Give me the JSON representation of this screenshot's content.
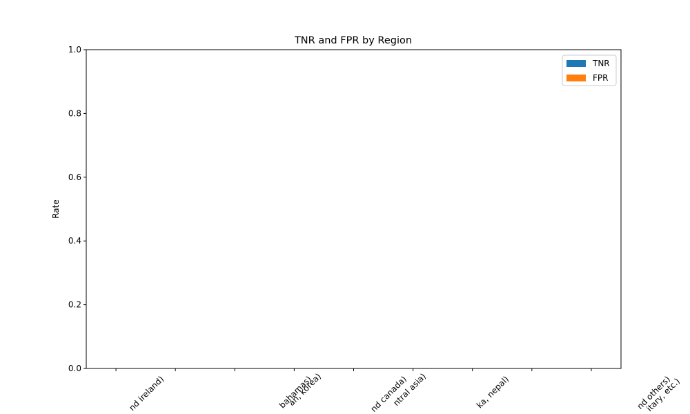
{
  "chart_data": {
    "type": "bar",
    "title": "TNR and FPR by Region",
    "ylabel": "Rate",
    "categories": [
      "nd ireland)",
      null,
      "bahamas)",
      "an, korea)",
      "nd canada)",
      "ntral asia)",
      "ka, nepal)",
      "nd others)",
      "itary, etc.)"
    ],
    "series": [
      {
        "name": "TNR",
        "color": "#1f77b4",
        "values": [
          null,
          null,
          null,
          null,
          null,
          null,
          null,
          null,
          null
        ]
      },
      {
        "name": "FPR",
        "color": "#ff7f0e",
        "values": [
          null,
          null,
          null,
          null,
          null,
          null,
          null,
          null,
          null
        ]
      }
    ],
    "ylim": [
      0,
      1
    ],
    "yticks": [
      {
        "value": 0,
        "label": "0.0"
      },
      {
        "value": 0.2,
        "label": "0.2"
      },
      {
        "value": 0.4,
        "label": "0.4"
      },
      {
        "value": 0.6,
        "label": "0.6"
      },
      {
        "value": 0.8,
        "label": "0.8"
      },
      {
        "value": 1,
        "label": "1.0"
      }
    ],
    "legend": "upper right"
  }
}
